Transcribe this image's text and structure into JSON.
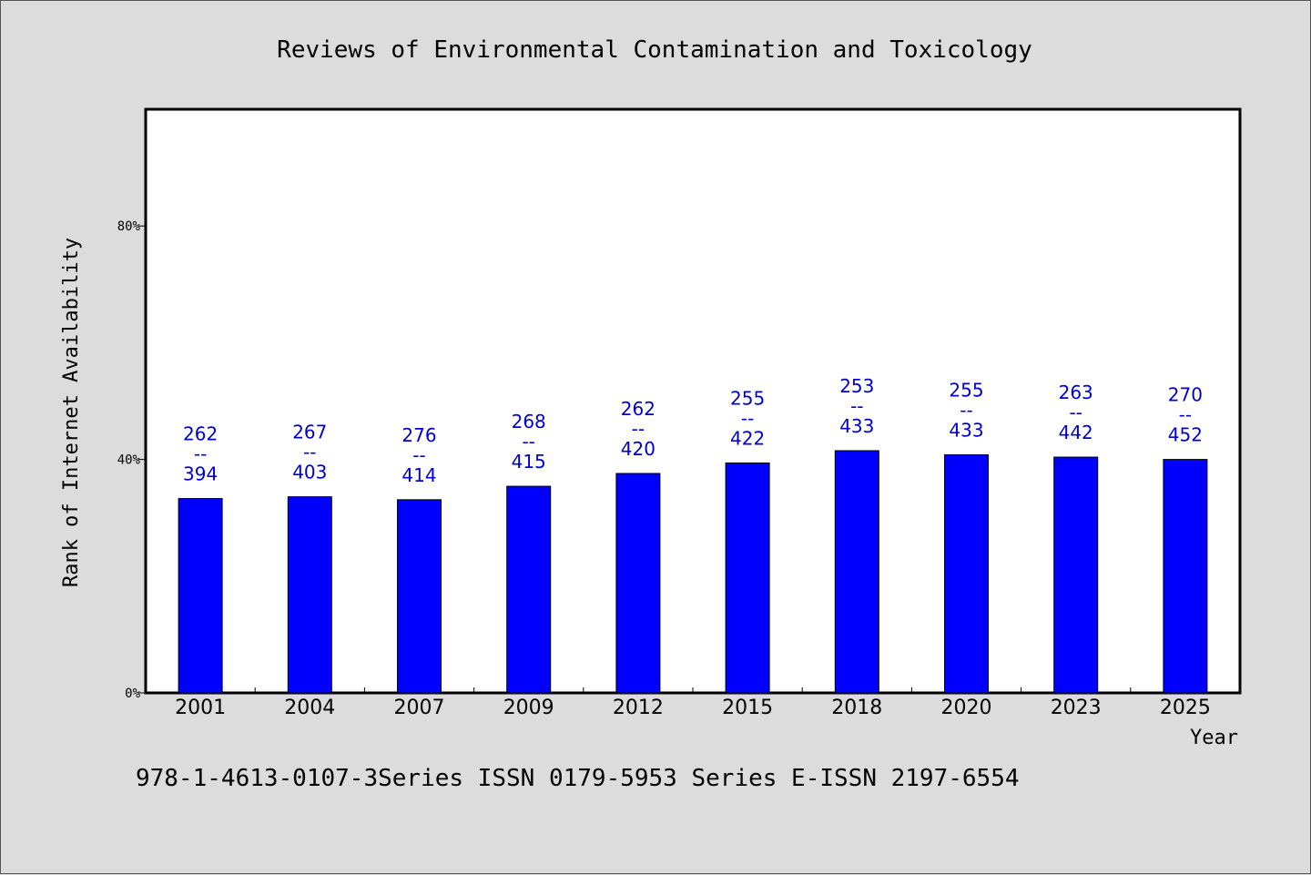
{
  "chart_data": {
    "type": "bar",
    "title": "Reviews of Environmental Contamination and Toxicology",
    "xlabel": "Year",
    "ylabel": "Rank of Internet Availability",
    "ylim": [
      0,
      100
    ],
    "yticks": [
      {
        "value": 0,
        "label": "0%"
      },
      {
        "value": 40,
        "label": "40%"
      },
      {
        "value": 80,
        "label": "80%"
      }
    ],
    "categories": [
      "2001",
      "2004",
      "2007",
      "2009",
      "2012",
      "2015",
      "2018",
      "2020",
      "2023",
      "2025"
    ],
    "values": [
      33.3,
      33.6,
      33.1,
      35.4,
      37.6,
      39.4,
      41.5,
      40.8,
      40.4,
      40.0
    ],
    "labels_top": [
      "262",
      "267",
      "276",
      "268",
      "262",
      "255",
      "253",
      "255",
      "263",
      "270"
    ],
    "labels_sep": "--",
    "labels_bottom": [
      "394",
      "403",
      "414",
      "415",
      "420",
      "422",
      "433",
      "433",
      "442",
      "452"
    ],
    "bar_color": "#0000ff",
    "label_color": "#0000cc",
    "grid": false
  },
  "footer": {
    "text": "978-1-4613-0107-3Series ISSN 0179-5953 Series E-ISSN 2197-6554"
  }
}
